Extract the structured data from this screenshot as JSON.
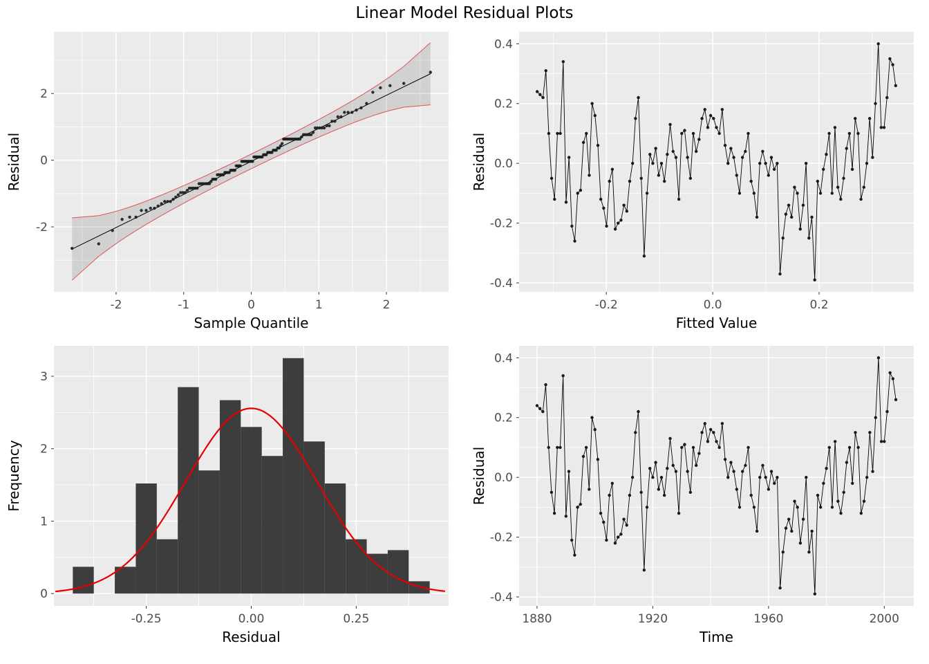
{
  "title": "Linear Model Residual Plots",
  "colors": {
    "panel_bg": "#EBEBEB",
    "grid": "#FFFFFF",
    "point": "#1A1A1A",
    "line": "#000000",
    "hist_fill": "#3D3D3D",
    "normal_curve": "#E60000",
    "qq_band_edge": "#E05252",
    "qq_band_fill": "rgba(0,0,0,0.11)",
    "tick_label": "#4D4D4D",
    "axis_title": "#000000",
    "tick_mark": "#333333"
  },
  "series": {
    "start_year": 1880,
    "residuals": [
      0.24,
      0.23,
      0.22,
      0.31,
      0.1,
      -0.05,
      -0.12,
      0.1,
      0.1,
      0.34,
      -0.13,
      0.02,
      -0.21,
      -0.26,
      -0.1,
      -0.09,
      0.07,
      0.1,
      -0.04,
      0.2,
      0.16,
      0.06,
      -0.12,
      -0.15,
      -0.21,
      -0.06,
      -0.02,
      -0.22,
      -0.2,
      -0.19,
      -0.14,
      -0.16,
      -0.06,
      0.0,
      0.15,
      0.22,
      -0.05,
      -0.31,
      -0.1,
      0.03,
      0.0,
      0.05,
      -0.04,
      0.0,
      -0.06,
      0.03,
      0.13,
      0.04,
      0.02,
      -0.12,
      0.1,
      0.11,
      0.02,
      -0.05,
      0.1,
      0.04,
      0.08,
      0.15,
      0.18,
      0.12,
      0.16,
      0.15,
      0.12,
      0.1,
      0.18,
      0.06,
      0.0,
      0.05,
      0.02,
      -0.04,
      -0.1,
      0.02,
      0.04,
      0.1,
      -0.06,
      -0.1,
      -0.18,
      0.0,
      0.04,
      0.0,
      -0.04,
      0.02,
      -0.02,
      0.0,
      -0.37,
      -0.25,
      -0.17,
      -0.14,
      -0.18,
      -0.08,
      -0.1,
      -0.22,
      -0.14,
      0.0,
      -0.25,
      -0.18,
      -0.39,
      -0.06,
      -0.1,
      -0.02,
      0.03,
      0.1,
      -0.1,
      0.12,
      -0.08,
      -0.12,
      -0.05,
      0.05,
      0.1,
      -0.02,
      0.15,
      0.1,
      -0.12,
      -0.08,
      0.0,
      0.15,
      0.02,
      0.2,
      0.4,
      0.12,
      0.12,
      0.22,
      0.35,
      0.33,
      0.26
    ],
    "fitted": {
      "slope": 0.005435,
      "value_at_start": -0.33
    }
  },
  "chart_data": [
    {
      "id": "qq_plot",
      "type": "qq",
      "xlabel": "Sample Quantile",
      "ylabel": "Residual",
      "x_source": "normal_quantiles",
      "y_source": "standardized_residuals",
      "confidence_level": 0.95,
      "xlim": [
        -2.92,
        2.92
      ],
      "ylim": [
        -3.95,
        3.85
      ],
      "xtick_values": [
        -2,
        -1,
        0,
        1,
        2
      ],
      "xtick_labels": [
        "-2",
        "-1",
        "0",
        "1",
        "2"
      ],
      "ytick_values": [
        -2,
        0,
        2
      ],
      "ytick_labels": [
        "-2",
        "0",
        "2"
      ]
    },
    {
      "id": "residual_vs_fitted",
      "type": "scatterline",
      "xlabel": "Fitted Value",
      "ylabel": "Residual",
      "x_source": "fitted",
      "y_source": "residuals",
      "xlim": [
        -0.364,
        0.378
      ],
      "ylim": [
        -0.43,
        0.44
      ],
      "xtick_values": [
        -0.2,
        0,
        0.2
      ],
      "xtick_labels": [
        "-0.2",
        "0.0",
        "0.2"
      ],
      "ytick_values": [
        -0.4,
        -0.2,
        0,
        0.2,
        0.4
      ],
      "ytick_labels": [
        "-0.4",
        "-0.2",
        "0.0",
        "0.2",
        "0.4"
      ]
    },
    {
      "id": "residual_histogram",
      "type": "histogram",
      "xlabel": "Residual",
      "ylabel": "Frequency",
      "xlim": [
        -0.47,
        0.47
      ],
      "ylim": [
        -0.17,
        3.42
      ],
      "xtick_values": [
        -0.25,
        0,
        0.25
      ],
      "xtick_labels": [
        "-0.25",
        "0.00",
        "0.25"
      ],
      "ytick_values": [
        0,
        1,
        2,
        3
      ],
      "ytick_labels": [
        "0",
        "1",
        "2",
        "3"
      ],
      "bin_start": -0.425,
      "bin_width": 0.05,
      "bin_densities": [
        0.37,
        0,
        0.37,
        1.52,
        0.75,
        2.85,
        1.7,
        2.67,
        2.3,
        1.9,
        3.25,
        2.1,
        1.52,
        0.75,
        0.55,
        0.6,
        0.17
      ],
      "normal_curve": {
        "mean": 0,
        "sd": 0.156
      }
    },
    {
      "id": "residual_vs_time",
      "type": "scatterline",
      "xlabel": "Time",
      "ylabel": "Residual",
      "x_source": "years",
      "y_source": "residuals",
      "xlim": [
        1873.8,
        2010.2
      ],
      "ylim": [
        -0.43,
        0.44
      ],
      "xtick_values": [
        1880,
        1920,
        1960,
        2000
      ],
      "xtick_labels": [
        "1880",
        "1920",
        "1960",
        "2000"
      ],
      "ytick_values": [
        -0.4,
        -0.2,
        0,
        0.2,
        0.4
      ],
      "ytick_labels": [
        "-0.4",
        "-0.2",
        "0.0",
        "0.2",
        "0.4"
      ]
    }
  ]
}
